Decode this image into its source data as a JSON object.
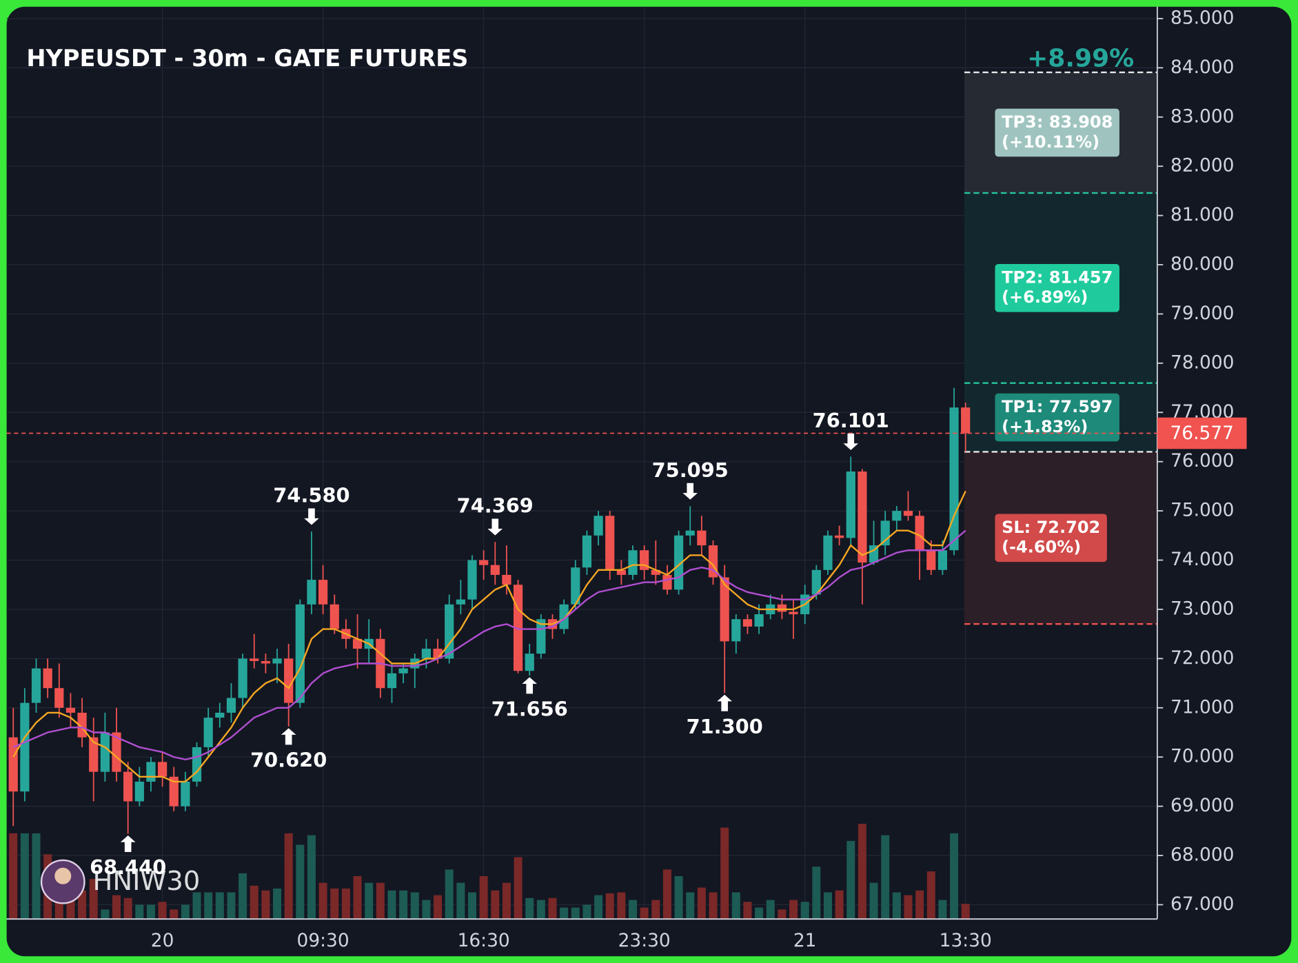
{
  "chart_data": {
    "type": "candlestick",
    "title": "HYPEUSDT - 30m - GATE FUTURES",
    "watermark": "HNIW30",
    "categories": [
      null,
      null,
      null,
      null,
      null,
      null,
      null,
      null,
      null,
      null,
      null,
      null,
      null,
      "20",
      null,
      null,
      null,
      null,
      null,
      null,
      null,
      null,
      null,
      null,
      null,
      null,
      null,
      "09:30",
      null,
      null,
      null,
      null,
      null,
      null,
      null,
      null,
      null,
      null,
      null,
      null,
      null,
      "16:30",
      null,
      null,
      null,
      null,
      null,
      null,
      null,
      null,
      null,
      null,
      null,
      null,
      null,
      "23:30",
      null,
      null,
      null,
      null,
      null,
      null,
      null,
      null,
      null,
      null,
      null,
      null,
      null,
      "21",
      null,
      null,
      null,
      null,
      null,
      null,
      null,
      null,
      null,
      null,
      null,
      null,
      null,
      "13:30"
    ],
    "open": [
      70.4,
      69.3,
      71.1,
      71.8,
      71.4,
      71.0,
      70.9,
      70.4,
      69.7,
      70.5,
      69.7,
      69.1,
      69.5,
      69.9,
      69.6,
      69.0,
      69.5,
      70.2,
      70.8,
      70.9,
      71.2,
      72.0,
      71.95,
      71.9,
      72.0,
      71.1,
      73.1,
      73.6,
      73.1,
      72.6,
      72.4,
      72.2,
      72.4,
      71.4,
      71.7,
      71.8,
      72.0,
      72.2,
      72.0,
      73.1,
      73.2,
      74.0,
      73.9,
      73.7,
      73.5,
      71.75,
      72.1,
      72.8,
      72.6,
      73.1,
      73.85,
      74.5,
      74.9,
      73.8,
      73.7,
      74.2,
      73.8,
      73.7,
      73.4,
      74.5,
      74.6,
      74.3,
      73.65,
      72.35,
      72.8,
      72.65,
      72.9,
      73.1,
      72.95,
      72.9,
      73.3,
      73.8,
      74.5,
      74.45,
      75.8,
      73.95,
      74.3,
      74.8,
      75.0,
      74.9,
      74.2,
      73.8,
      74.2,
      77.1
    ],
    "high": [
      71.0,
      71.4,
      72.0,
      72.0,
      71.9,
      71.3,
      71.2,
      70.8,
      70.9,
      71.0,
      69.9,
      69.8,
      70.0,
      70.1,
      69.8,
      69.7,
      70.3,
      71.0,
      71.1,
      71.5,
      72.1,
      72.5,
      72.1,
      72.2,
      72.3,
      73.2,
      74.58,
      73.9,
      73.3,
      72.8,
      72.9,
      72.8,
      72.6,
      71.9,
      71.9,
      72.1,
      72.4,
      72.4,
      73.3,
      73.6,
      74.1,
      74.2,
      74.369,
      74.3,
      73.6,
      72.3,
      72.9,
      72.9,
      73.2,
      74.0,
      74.6,
      75.0,
      75.0,
      74.0,
      74.3,
      74.3,
      74.4,
      73.9,
      74.6,
      75.095,
      74.9,
      74.4,
      73.9,
      72.9,
      72.9,
      73.1,
      73.3,
      73.3,
      73.2,
      73.5,
      73.9,
      74.6,
      74.7,
      76.101,
      75.85,
      74.8,
      75.0,
      75.1,
      75.4,
      75.0,
      74.4,
      74.4,
      77.5,
      77.2
    ],
    "low": [
      68.6,
      69.1,
      70.9,
      71.2,
      70.8,
      70.6,
      70.2,
      69.1,
      69.5,
      69.5,
      68.44,
      69.0,
      69.3,
      69.4,
      68.9,
      68.9,
      69.4,
      70.0,
      70.6,
      70.7,
      71.0,
      71.8,
      71.7,
      71.5,
      70.62,
      71.0,
      72.9,
      72.9,
      72.5,
      72.2,
      71.8,
      71.9,
      71.2,
      71.1,
      71.5,
      71.4,
      71.8,
      71.9,
      71.9,
      72.9,
      73.0,
      73.6,
      73.5,
      73.3,
      71.7,
      71.656,
      72.0,
      72.4,
      72.5,
      73.0,
      73.7,
      74.3,
      73.6,
      73.5,
      73.6,
      73.6,
      73.5,
      73.3,
      73.3,
      74.3,
      74.1,
      73.5,
      71.3,
      72.1,
      72.5,
      72.5,
      72.8,
      72.8,
      72.4,
      72.7,
      73.2,
      73.7,
      74.3,
      74.3,
      73.1,
      73.9,
      74.1,
      74.6,
      74.8,
      73.6,
      73.7,
      73.7,
      74.1,
      76.2
    ],
    "close": [
      69.3,
      71.1,
      71.8,
      71.4,
      71.0,
      70.9,
      70.4,
      69.7,
      70.5,
      69.7,
      69.1,
      69.5,
      69.9,
      69.6,
      69.0,
      69.5,
      70.2,
      70.8,
      70.9,
      71.2,
      72.0,
      71.95,
      71.9,
      72.0,
      71.1,
      73.1,
      73.6,
      73.1,
      72.6,
      72.4,
      72.2,
      72.4,
      71.4,
      71.7,
      71.8,
      72.0,
      72.2,
      72.0,
      73.1,
      73.2,
      74.0,
      73.9,
      73.7,
      73.5,
      71.75,
      72.1,
      72.8,
      72.6,
      73.1,
      73.85,
      74.5,
      74.9,
      73.8,
      73.7,
      74.2,
      73.8,
      73.7,
      73.4,
      74.5,
      74.6,
      74.3,
      73.65,
      72.35,
      72.8,
      72.65,
      72.9,
      73.1,
      72.95,
      72.9,
      73.3,
      73.8,
      74.5,
      74.45,
      75.8,
      73.95,
      74.3,
      74.8,
      75.0,
      74.9,
      74.2,
      73.8,
      74.2,
      77.1,
      76.577
    ],
    "volume": [
      90,
      90,
      90,
      68,
      45,
      38,
      30,
      42,
      10,
      25,
      22,
      15,
      15,
      18,
      10,
      15,
      28,
      28,
      28,
      28,
      48,
      35,
      30,
      32,
      90,
      78,
      88,
      38,
      32,
      32,
      45,
      38,
      38,
      30,
      30,
      28,
      20,
      25,
      52,
      38,
      28,
      45,
      30,
      38,
      65,
      22,
      20,
      22,
      12,
      12,
      15,
      25,
      27,
      28,
      20,
      12,
      20,
      52,
      45,
      28,
      33,
      28,
      96,
      28,
      18,
      12,
      20,
      10,
      20,
      18,
      55,
      28,
      30,
      82,
      100,
      38,
      88,
      28,
      25,
      30,
      50,
      20,
      90,
      16
    ],
    "vlim": [
      0,
      100
    ],
    "ma_fast": [
      70.0,
      70.4,
      70.7,
      70.9,
      70.9,
      70.8,
      70.6,
      70.3,
      70.2,
      70.0,
      69.8,
      69.6,
      69.6,
      69.6,
      69.5,
      69.5,
      69.7,
      70.0,
      70.3,
      70.6,
      71.0,
      71.3,
      71.5,
      71.6,
      71.4,
      71.8,
      72.4,
      72.6,
      72.6,
      72.5,
      72.4,
      72.3,
      72.1,
      71.9,
      71.9,
      71.9,
      72.0,
      72.0,
      72.3,
      72.6,
      73.0,
      73.2,
      73.4,
      73.5,
      73.0,
      72.8,
      72.7,
      72.7,
      72.8,
      73.1,
      73.5,
      73.8,
      73.8,
      73.8,
      73.9,
      73.9,
      73.8,
      73.7,
      73.9,
      74.1,
      74.1,
      73.9,
      73.5,
      73.3,
      73.1,
      73.0,
      73.0,
      73.0,
      73.0,
      73.1,
      73.3,
      73.6,
      73.9,
      74.3,
      74.1,
      74.2,
      74.4,
      74.6,
      74.6,
      74.5,
      74.3,
      74.3,
      74.9,
      75.4
    ],
    "ma_slow": [
      70.2,
      70.3,
      70.4,
      70.5,
      70.55,
      70.6,
      70.6,
      70.5,
      70.5,
      70.4,
      70.3,
      70.2,
      70.15,
      70.1,
      70.0,
      69.95,
      70.0,
      70.1,
      70.25,
      70.4,
      70.6,
      70.8,
      70.9,
      71.0,
      71.0,
      71.2,
      71.5,
      71.7,
      71.8,
      71.85,
      71.9,
      71.9,
      71.9,
      71.85,
      71.85,
      71.85,
      71.9,
      72.0,
      72.1,
      72.25,
      72.4,
      72.55,
      72.65,
      72.7,
      72.6,
      72.6,
      72.6,
      72.65,
      72.8,
      73.0,
      73.2,
      73.35,
      73.4,
      73.45,
      73.5,
      73.55,
      73.55,
      73.6,
      73.65,
      73.8,
      73.85,
      73.8,
      73.6,
      73.45,
      73.35,
      73.3,
      73.25,
      73.2,
      73.2,
      73.2,
      73.3,
      73.45,
      73.65,
      73.8,
      73.85,
      73.95,
      74.05,
      74.15,
      74.2,
      74.2,
      74.2,
      74.2,
      74.4,
      74.6
    ],
    "up_color": "#26a69a",
    "down_color": "#ef5350",
    "volume_up_color": "#1d5b55",
    "volume_down_color": "#7a2828",
    "ma_fast_color": "#f5a623",
    "ma_slow_color": "#b04fd0",
    "ylim": [
      66.71,
      85.24
    ],
    "yticks": [
      {
        "value": 67,
        "label": "67.000"
      },
      {
        "value": 68,
        "label": "68.000"
      },
      {
        "value": 69,
        "label": "69.000"
      },
      {
        "value": 70,
        "label": "70.000"
      },
      {
        "value": 71,
        "label": "71.000"
      },
      {
        "value": 72,
        "label": "72.000"
      },
      {
        "value": 73,
        "label": "73.000"
      },
      {
        "value": 74,
        "label": "74.000"
      },
      {
        "value": 75,
        "label": "75.000"
      },
      {
        "value": 76,
        "label": "76.000"
      },
      {
        "value": 77,
        "label": "77.000"
      },
      {
        "value": 78,
        "label": "78.000"
      },
      {
        "value": 79,
        "label": "79.000"
      },
      {
        "value": 80,
        "label": "80.000"
      },
      {
        "value": 81,
        "label": "81.000"
      },
      {
        "value": 82,
        "label": "82.000"
      },
      {
        "value": 83,
        "label": "83.000"
      },
      {
        "value": 84,
        "label": "84.000"
      },
      {
        "value": 85,
        "label": "85.000"
      }
    ],
    "grid": true,
    "last_price": 76.577,
    "last_price_color": "#f05350",
    "annotations": [
      {
        "index": 10,
        "at": "low",
        "label": "68.440"
      },
      {
        "index": 24,
        "at": "low",
        "label": "70.620"
      },
      {
        "index": 26,
        "at": "high",
        "label": "74.580"
      },
      {
        "index": 42,
        "at": "high",
        "label": "74.369"
      },
      {
        "index": 45,
        "at": "low",
        "label": "71.656"
      },
      {
        "index": 59,
        "at": "high",
        "label": "75.095"
      },
      {
        "index": 62,
        "at": "low",
        "label": "71.300"
      },
      {
        "index": 73,
        "at": "high",
        "label": "76.101"
      }
    ],
    "position": {
      "entry": 76.2,
      "entry_color": "#e8e8e8",
      "percent_label": "+8.99%",
      "percent_color": "#26a69a",
      "levels": [
        {
          "value": 83.908,
          "label": [
            "TP3: 83.908",
            "(+10.11%)"
          ],
          "color": "#9fc4c0",
          "line_color": "#e8e8e8",
          "zone_color": "#262a33"
        },
        {
          "value": 81.457,
          "label": [
            "TP2: 81.457",
            "(+6.89%)"
          ],
          "color": "#1fcb9c",
          "line_color": "#26c6a0",
          "zone_color": "#13282e"
        },
        {
          "value": 77.597,
          "label": [
            "TP1: 77.597",
            "(+1.83%)"
          ],
          "color": "#1e8a7a",
          "line_color": "#26c6a0",
          "zone_color": "#13282e"
        },
        {
          "value": 72.702,
          "label": [
            "SL: 72.702",
            "(-4.60%)"
          ],
          "color": "#d24a4a",
          "line_color": "#ef5350",
          "zone_color": "#2d1f27"
        }
      ]
    }
  }
}
